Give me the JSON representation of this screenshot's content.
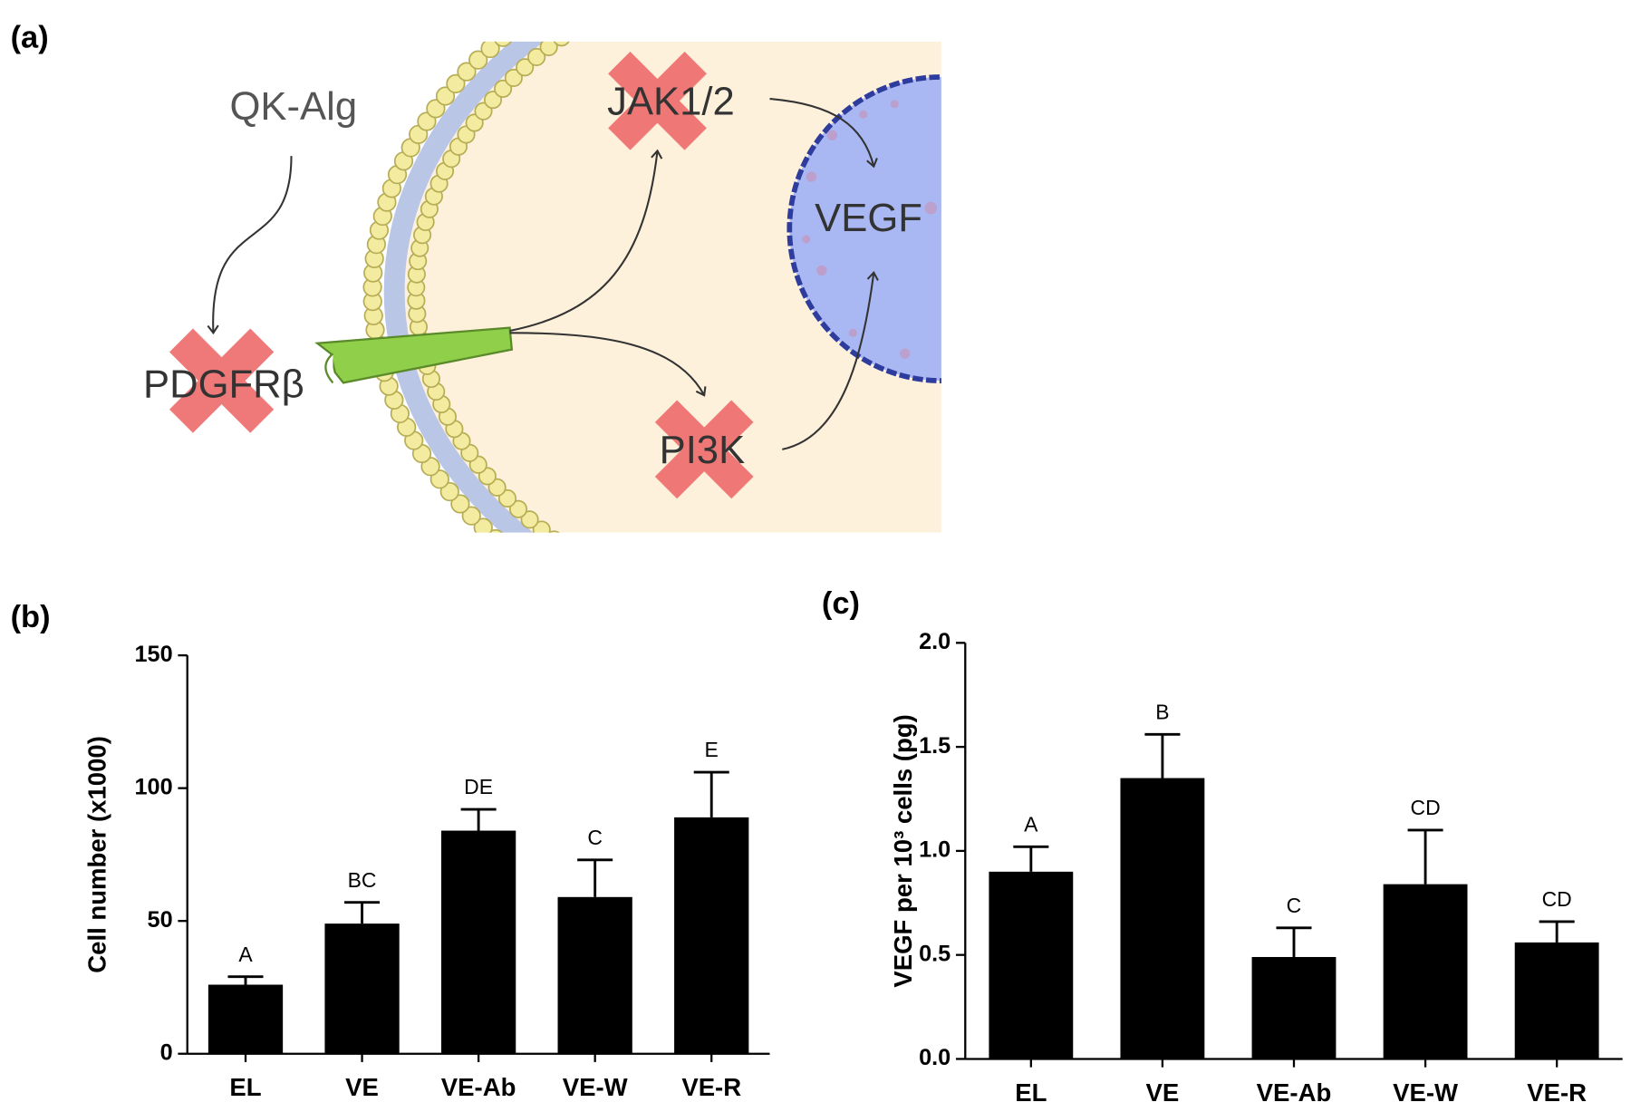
{
  "panels": {
    "a": "(a)",
    "b": "(b)",
    "c": "(c)"
  },
  "diagram": {
    "drug": "QK-Alg",
    "receptor": "PDGFRβ",
    "jak": "JAK1/2",
    "pi3k": "PI3K",
    "target": "VEGF"
  },
  "chart_data": [
    {
      "type": "bar",
      "y_label": "Cell number (x1000)",
      "categories": [
        "EL",
        "VE",
        "VE-Ab",
        "VE-W",
        "VE-R"
      ],
      "values": [
        26,
        49,
        84,
        59,
        89
      ],
      "errors": [
        3,
        8,
        8,
        14,
        17
      ],
      "annotations": [
        "A",
        "BC",
        "DE",
        "C",
        "E"
      ],
      "color": "#000000",
      "ylim": [
        0,
        150
      ],
      "yticks": [
        0,
        50,
        100,
        150
      ]
    },
    {
      "type": "bar",
      "y_label": "VEGF per 10³ cells (pg)",
      "categories": [
        "EL",
        "VE",
        "VE-Ab",
        "VE-W",
        "VE-R"
      ],
      "values": [
        0.9,
        1.35,
        0.49,
        0.84,
        0.56
      ],
      "errors": [
        0.12,
        0.21,
        0.14,
        0.26,
        0.1
      ],
      "annotations": [
        "A",
        "B",
        "C",
        "CD",
        "CD"
      ],
      "color": "#000000",
      "ylim": [
        0,
        2
      ],
      "yticks": [
        {
          "value": 0,
          "label": "0.0"
        },
        0.5,
        {
          "value": 1,
          "label": "1.0"
        },
        1.5,
        {
          "value": 2,
          "label": "2.0"
        }
      ]
    }
  ]
}
